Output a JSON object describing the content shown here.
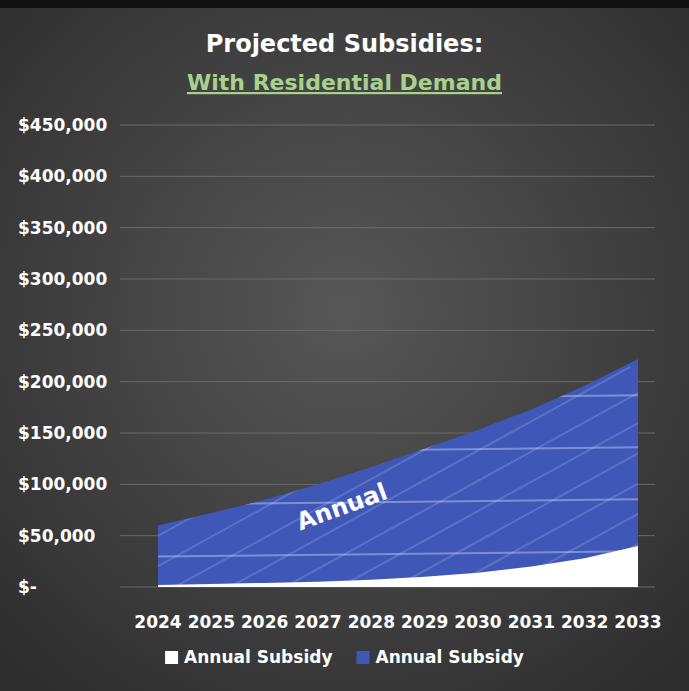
{
  "chart_data": {
    "type": "area",
    "title": "Projected Subsidies:",
    "subtitle": "With Residential Demand",
    "categories": [
      "2024",
      "2025",
      "2026",
      "2027",
      "2028",
      "2029",
      "2030",
      "2031",
      "2032",
      "2033"
    ],
    "series": [
      {
        "name": "Annual Subsidy",
        "color": "#3f58b8",
        "values": [
          60000,
          72000,
          85000,
          100000,
          117000,
          135000,
          153000,
          173000,
          196000,
          222000
        ]
      },
      {
        "name": "Annual Subsidy",
        "color": "#ffffff",
        "values": [
          2000,
          3000,
          4000,
          5000,
          7000,
          10000,
          14000,
          20000,
          28000,
          40000
        ]
      }
    ],
    "annotations": [
      "Annual"
    ],
    "ylim": [
      0,
      450000
    ],
    "yticks": [
      {
        "value": 0,
        "label": "$-"
      },
      {
        "value": 50000,
        "label": "$50,000"
      },
      {
        "value": 100000,
        "label": "$100,000"
      },
      {
        "value": 150000,
        "label": "$150,000"
      },
      {
        "value": 200000,
        "label": "$200,000"
      },
      {
        "value": 250000,
        "label": "$250,000"
      },
      {
        "value": 300000,
        "label": "$300,000"
      },
      {
        "value": 350000,
        "label": "$350,000"
      },
      {
        "value": 400000,
        "label": "$400,000"
      },
      {
        "value": 450000,
        "label": "$450,000"
      }
    ],
    "grid": true,
    "stacked": false,
    "legend": "bottom"
  }
}
